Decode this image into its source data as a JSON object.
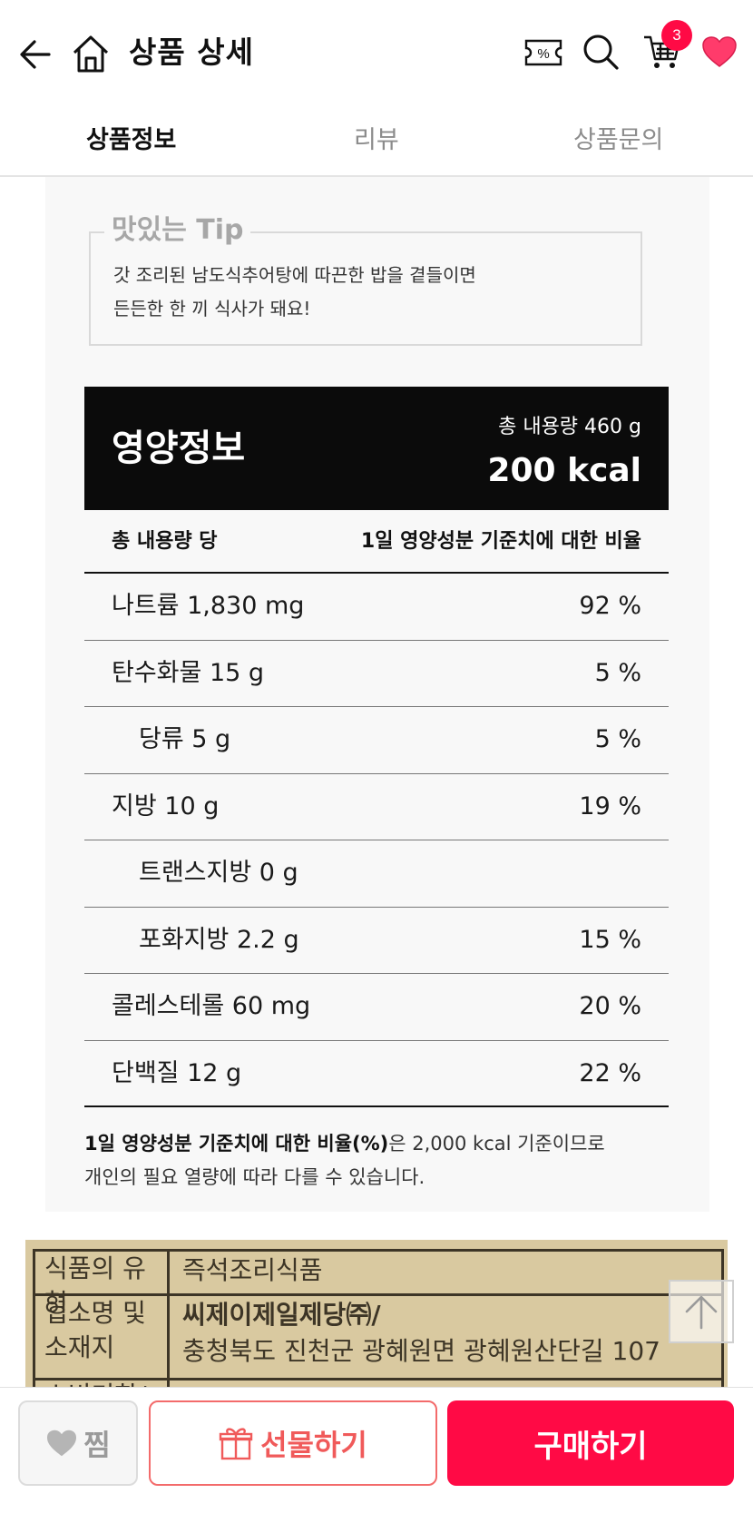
{
  "header": {
    "title": "상품 상세",
    "icons": [
      "back-arrow-icon",
      "home-icon",
      "coupon-icon",
      "search-icon",
      "cart-icon",
      "heart-icon"
    ],
    "coupon_symbol": "%",
    "cart_count": "3",
    "accent_color": "#ff0a45"
  },
  "tabs": [
    {
      "label": "상품정보",
      "active": true
    },
    {
      "label": "리뷰",
      "active": false
    },
    {
      "label": "상품문의",
      "active": false
    }
  ],
  "tip": {
    "title": "맛있는 Tip",
    "line1": "갓 조리된 남도식추어탕에 따끈한 밥을 곁들이면",
    "line2": "든든한 한 끼 식사가 돼요!"
  },
  "nutrition": {
    "title": "영양정보",
    "total": "총 내용량 460 g",
    "kcal": "200 kcal",
    "col_left": "총 내용량 당",
    "col_right": "1일 영양성분 기준치에 대한 비율",
    "rows": [
      {
        "name": "나트륨 1,830 mg",
        "pct": "92 %"
      },
      {
        "name": "탄수화물 15 g",
        "pct": "5 %"
      },
      {
        "name": "당류 5 g",
        "pct": "5 %"
      },
      {
        "name": "지방 10 g",
        "pct": "19 %"
      },
      {
        "name": "트랜스지방 0 g",
        "pct": ""
      },
      {
        "name": "포화지방 2.2 g",
        "pct": "15 %"
      },
      {
        "name": "콜레스테롤 60 mg",
        "pct": "20 %"
      },
      {
        "name": "단백질 12 g",
        "pct": "22 %"
      }
    ],
    "footnote_bold": "1일 영양성분 기준치에 대한 비율(%)",
    "footnote_rest": "은 2,000 kcal 기준이므로",
    "footnote_line2": "개인의 필요 열량에 따라 다를 수 있습니다."
  },
  "label_table": {
    "row1_key": "식품의 유형",
    "row1_val": "즉석조리식품",
    "row2_key_a": "업소명 및",
    "row2_key_b": "소재지",
    "row2_val_a": "씨제이제일제당㈜/",
    "row2_val_b": "충청북도 진천군 광혜원면 광혜원산단길 107",
    "row3_key": "소비기한/"
  },
  "bottom_bar": {
    "like_label": "찜",
    "gift_label": "선물하기",
    "buy_label": "구매하기"
  }
}
